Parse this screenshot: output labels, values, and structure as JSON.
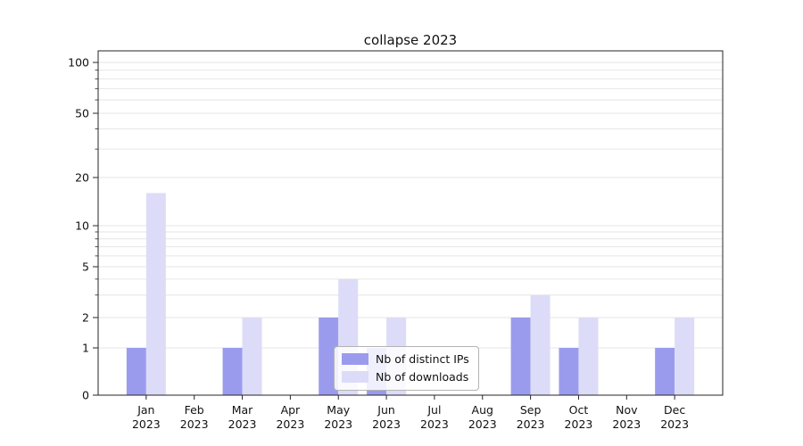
{
  "title": "collapse 2023",
  "chart_data": {
    "type": "bar",
    "title": "collapse 2023",
    "categories": [
      "Jan",
      "Feb",
      "Mar",
      "Apr",
      "May",
      "Jun",
      "Jul",
      "Aug",
      "Sep",
      "Oct",
      "Nov",
      "Dec"
    ],
    "year_label": "2023",
    "series": [
      {
        "name": "Nb of distinct IPs",
        "color": "#9b9bee",
        "values": [
          1,
          0,
          1,
          0,
          2,
          1,
          0,
          0,
          2,
          1,
          0,
          1
        ]
      },
      {
        "name": "Nb of downloads",
        "color": "#dcdcf8",
        "values": [
          16,
          0,
          2,
          0,
          4,
          2,
          0,
          0,
          3,
          2,
          0,
          2
        ]
      }
    ],
    "yscale": "symlog",
    "yticks": [
      0,
      1,
      2,
      5,
      10,
      20,
      50,
      100
    ],
    "ylim": [
      0,
      120
    ],
    "grid": true,
    "legend_position": "lower center"
  }
}
